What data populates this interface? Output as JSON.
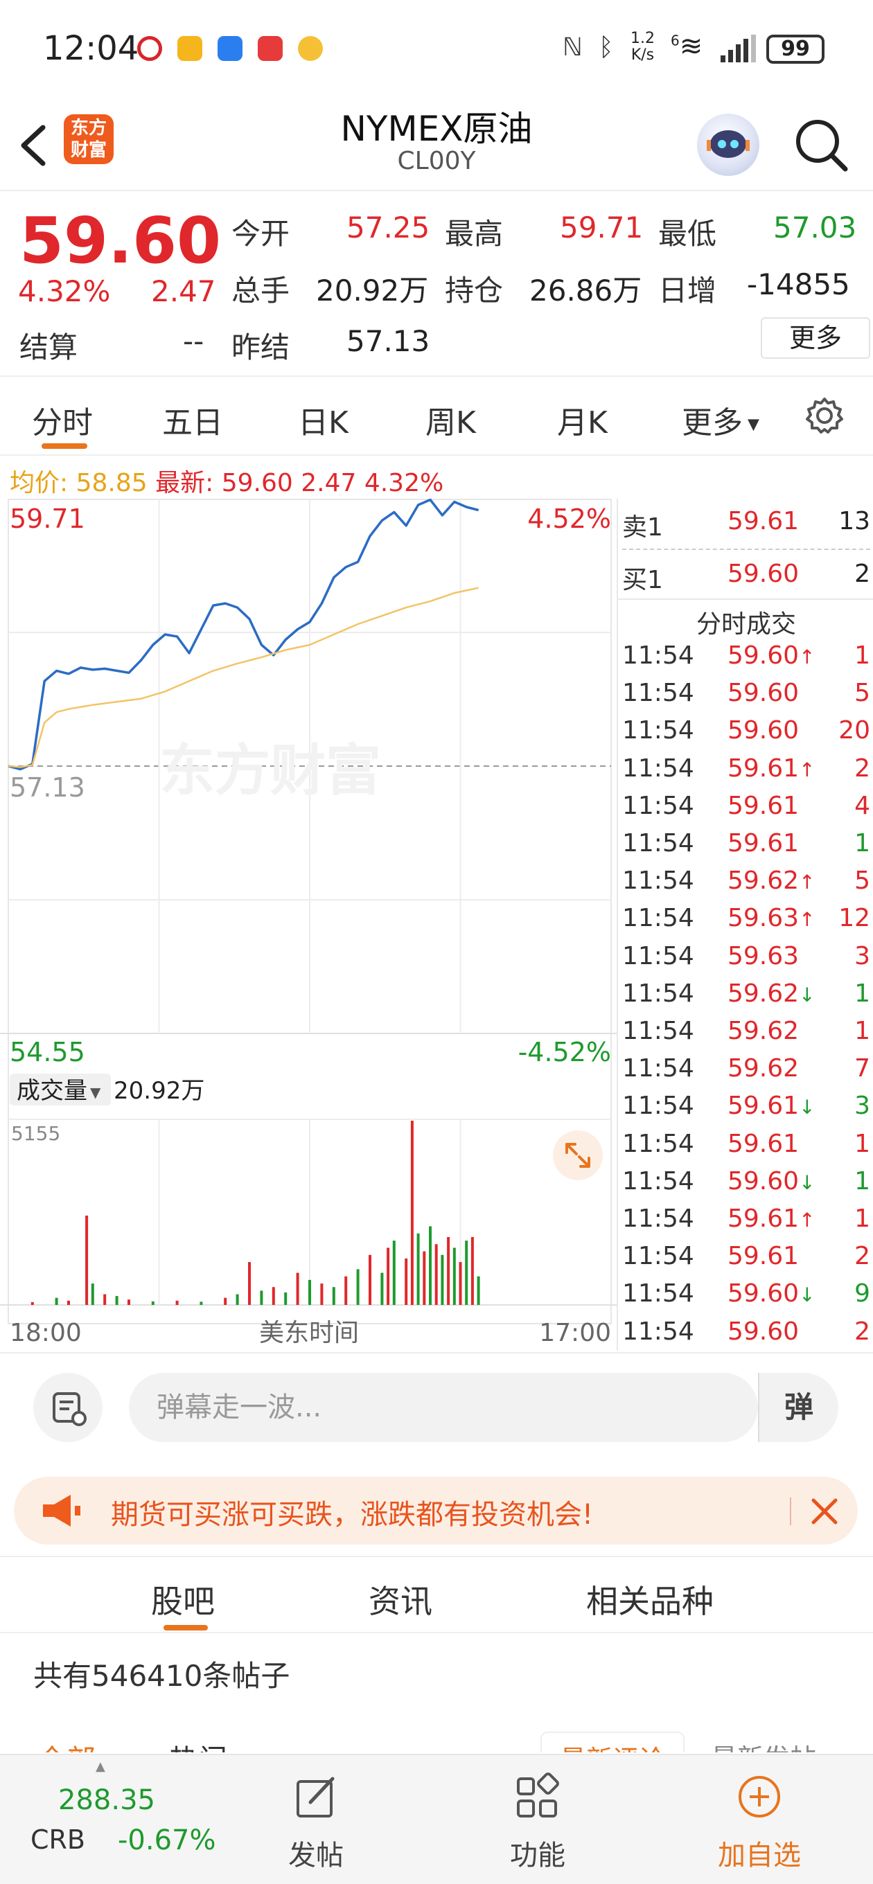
{
  "status_bar": {
    "time": "12:04",
    "net_speed_top": "1.2",
    "net_speed_bottom": "K/s",
    "network_type": "6",
    "battery": "99"
  },
  "header": {
    "logo_text_line1": "东方",
    "logo_text_line2": "财富",
    "title": "NYMEX原油",
    "subtitle": "CL00Y"
  },
  "quote": {
    "price": "59.60",
    "change_pct": "4.32%",
    "change": "2.47",
    "settle_label": "结算",
    "settle_value": "--",
    "open_label": "今开",
    "open_value": "57.25",
    "high_label": "最高",
    "high_value": "59.71",
    "low_label": "最低",
    "low_value": "57.03",
    "volume_label": "总手",
    "volume_value": "20.92万",
    "oi_label": "持仓",
    "oi_value": "26.86万",
    "daily_inc_label": "日增",
    "daily_inc_value": "-14855",
    "prev_settle_label": "昨结",
    "prev_settle_value": "57.13",
    "more_button": "更多"
  },
  "period_tabs": [
    "分时",
    "五日",
    "日K",
    "周K",
    "月K",
    "更多"
  ],
  "info_line": {
    "avg_label": "均价:",
    "avg_value": "58.85",
    "latest_label": "最新:",
    "latest_value": "59.60",
    "latest_change": "2.47",
    "latest_pct": "4.32%"
  },
  "chart_labels": {
    "y_max": "59.71",
    "y_mid": "57.13",
    "y_min": "54.55",
    "pct_max": "4.52%",
    "pct_min": "-4.52%",
    "watermark": "东方财富",
    "volume_selector": "成交量",
    "volume_total": "20.92万",
    "volume_max": "5155",
    "x_start": "18:00",
    "x_mid": "美东时间",
    "x_end": "17:00"
  },
  "chart_data": {
    "type": "line",
    "ylim": [
      54.55,
      59.71
    ],
    "reference_price": 57.13,
    "x_range": [
      "18:00",
      "17:00"
    ],
    "session_progress": 0.78,
    "series": [
      {
        "name": "最新",
        "color": "#2b6cc4",
        "x": [
          0,
          0.02,
          0.04,
          0.06,
          0.08,
          0.1,
          0.12,
          0.14,
          0.16,
          0.18,
          0.2,
          0.22,
          0.24,
          0.26,
          0.28,
          0.3,
          0.32,
          0.34,
          0.36,
          0.38,
          0.4,
          0.42,
          0.44,
          0.46,
          0.48,
          0.5,
          0.52,
          0.54,
          0.56,
          0.58,
          0.6,
          0.62,
          0.64,
          0.66,
          0.68,
          0.7,
          0.72,
          0.74,
          0.76,
          0.78
        ],
        "y": [
          57.13,
          57.1,
          57.15,
          57.95,
          58.05,
          58.02,
          58.08,
          58.06,
          58.07,
          58.05,
          58.03,
          58.15,
          58.3,
          58.4,
          58.38,
          58.22,
          58.45,
          58.68,
          58.7,
          58.66,
          58.55,
          58.3,
          58.2,
          58.35,
          58.45,
          58.52,
          58.7,
          58.95,
          59.05,
          59.1,
          59.35,
          59.5,
          59.58,
          59.45,
          59.65,
          59.7,
          59.55,
          59.68,
          59.63,
          59.6
        ]
      },
      {
        "name": "均价",
        "color": "#f3c366",
        "x": [
          0,
          0.02,
          0.04,
          0.06,
          0.08,
          0.1,
          0.14,
          0.18,
          0.22,
          0.26,
          0.3,
          0.34,
          0.38,
          0.42,
          0.46,
          0.5,
          0.54,
          0.58,
          0.62,
          0.66,
          0.7,
          0.74,
          0.78
        ],
        "y": [
          57.13,
          57.12,
          57.14,
          57.55,
          57.65,
          57.68,
          57.72,
          57.75,
          57.78,
          57.85,
          57.95,
          58.05,
          58.12,
          58.18,
          58.25,
          58.3,
          58.4,
          58.5,
          58.58,
          58.66,
          58.72,
          58.8,
          58.85
        ]
      }
    ],
    "volume": {
      "ylim": [
        0,
        5155
      ],
      "bars": [
        {
          "x": 0.04,
          "v": 80,
          "c": "red"
        },
        {
          "x": 0.08,
          "v": 200,
          "c": "green"
        },
        {
          "x": 0.1,
          "v": 120,
          "c": "red"
        },
        {
          "x": 0.13,
          "v": 2500,
          "c": "red"
        },
        {
          "x": 0.14,
          "v": 600,
          "c": "green"
        },
        {
          "x": 0.16,
          "v": 300,
          "c": "red"
        },
        {
          "x": 0.18,
          "v": 250,
          "c": "green"
        },
        {
          "x": 0.2,
          "v": 150,
          "c": "red"
        },
        {
          "x": 0.24,
          "v": 100,
          "c": "green"
        },
        {
          "x": 0.28,
          "v": 120,
          "c": "red"
        },
        {
          "x": 0.32,
          "v": 90,
          "c": "green"
        },
        {
          "x": 0.36,
          "v": 200,
          "c": "red"
        },
        {
          "x": 0.38,
          "v": 300,
          "c": "green"
        },
        {
          "x": 0.4,
          "v": 1200,
          "c": "red"
        },
        {
          "x": 0.42,
          "v": 400,
          "c": "green"
        },
        {
          "x": 0.44,
          "v": 500,
          "c": "red"
        },
        {
          "x": 0.46,
          "v": 350,
          "c": "green"
        },
        {
          "x": 0.48,
          "v": 900,
          "c": "red"
        },
        {
          "x": 0.5,
          "v": 700,
          "c": "green"
        },
        {
          "x": 0.52,
          "v": 600,
          "c": "red"
        },
        {
          "x": 0.54,
          "v": 500,
          "c": "green"
        },
        {
          "x": 0.56,
          "v": 800,
          "c": "red"
        },
        {
          "x": 0.58,
          "v": 1000,
          "c": "green"
        },
        {
          "x": 0.6,
          "v": 1400,
          "c": "red"
        },
        {
          "x": 0.62,
          "v": 900,
          "c": "green"
        },
        {
          "x": 0.63,
          "v": 1600,
          "c": "red"
        },
        {
          "x": 0.64,
          "v": 1800,
          "c": "green"
        },
        {
          "x": 0.66,
          "v": 1300,
          "c": "red"
        },
        {
          "x": 0.67,
          "v": 5155,
          "c": "red"
        },
        {
          "x": 0.68,
          "v": 2000,
          "c": "green"
        },
        {
          "x": 0.69,
          "v": 1500,
          "c": "red"
        },
        {
          "x": 0.7,
          "v": 2200,
          "c": "green"
        },
        {
          "x": 0.71,
          "v": 1700,
          "c": "red"
        },
        {
          "x": 0.72,
          "v": 1400,
          "c": "green"
        },
        {
          "x": 0.73,
          "v": 1900,
          "c": "red"
        },
        {
          "x": 0.74,
          "v": 1600,
          "c": "green"
        },
        {
          "x": 0.75,
          "v": 1200,
          "c": "red"
        },
        {
          "x": 0.76,
          "v": 1800,
          "c": "green"
        },
        {
          "x": 0.77,
          "v": 1900,
          "c": "red"
        },
        {
          "x": 0.78,
          "v": 800,
          "c": "green"
        }
      ]
    }
  },
  "order_book": {
    "ask_label": "卖1",
    "ask_price": "59.61",
    "ask_volume": "13",
    "bid_label": "买1",
    "bid_price": "59.60",
    "bid_volume": "2",
    "ticks_title": "分时成交"
  },
  "ticks": [
    {
      "time": "11:54",
      "price": "59.60",
      "arrow": "↑",
      "vol": "1",
      "vc": "red"
    },
    {
      "time": "11:54",
      "price": "59.60",
      "arrow": "",
      "vol": "5",
      "vc": "red"
    },
    {
      "time": "11:54",
      "price": "59.60",
      "arrow": "",
      "vol": "20",
      "vc": "red"
    },
    {
      "time": "11:54",
      "price": "59.61",
      "arrow": "↑",
      "vol": "2",
      "vc": "red"
    },
    {
      "time": "11:54",
      "price": "59.61",
      "arrow": "",
      "vol": "4",
      "vc": "red"
    },
    {
      "time": "11:54",
      "price": "59.61",
      "arrow": "",
      "vol": "1",
      "vc": "green"
    },
    {
      "time": "11:54",
      "price": "59.62",
      "arrow": "↑",
      "vol": "5",
      "vc": "red"
    },
    {
      "time": "11:54",
      "price": "59.63",
      "arrow": "↑",
      "vol": "12",
      "vc": "red"
    },
    {
      "time": "11:54",
      "price": "59.63",
      "arrow": "",
      "vol": "3",
      "vc": "red"
    },
    {
      "time": "11:54",
      "price": "59.62",
      "arrow": "↓",
      "vol": "1",
      "vc": "green"
    },
    {
      "time": "11:54",
      "price": "59.62",
      "arrow": "",
      "vol": "1",
      "vc": "red"
    },
    {
      "time": "11:54",
      "price": "59.62",
      "arrow": "",
      "vol": "7",
      "vc": "red"
    },
    {
      "time": "11:54",
      "price": "59.61",
      "arrow": "↓",
      "vol": "3",
      "vc": "green"
    },
    {
      "time": "11:54",
      "price": "59.61",
      "arrow": "",
      "vol": "1",
      "vc": "red"
    },
    {
      "time": "11:54",
      "price": "59.60",
      "arrow": "↓",
      "vol": "1",
      "vc": "green"
    },
    {
      "time": "11:54",
      "price": "59.61",
      "arrow": "↑",
      "vol": "1",
      "vc": "red"
    },
    {
      "time": "11:54",
      "price": "59.61",
      "arrow": "",
      "vol": "2",
      "vc": "red"
    },
    {
      "time": "11:54",
      "price": "59.60",
      "arrow": "↓",
      "vol": "9",
      "vc": "green"
    },
    {
      "time": "11:54",
      "price": "59.60",
      "arrow": "",
      "vol": "2",
      "vc": "red"
    }
  ],
  "danmu": {
    "placeholder": "弹幕走一波...",
    "toggle_label": "弹"
  },
  "promo": {
    "text": "期货可买涨可买跌，涨跌都有投资机会!"
  },
  "community_tabs": [
    "股吧",
    "资讯",
    "相关品种"
  ],
  "post_count_text": "共有546410条帖子",
  "filters": {
    "left1": "全部",
    "left2": "热门",
    "right1": "最新评论",
    "right2": "最新发帖"
  },
  "bottom_nav": {
    "crb_value": "288.35",
    "crb_label": "CRB",
    "crb_change": "-0.67%",
    "post_label": "发帖",
    "func_label": "功能",
    "watch_label": "加自选"
  },
  "colors": {
    "up": "#e0272b",
    "down": "#1e9a2e",
    "accent": "#e8741d",
    "price_line": "#2b6cc4",
    "avg_line": "#f3c366"
  }
}
